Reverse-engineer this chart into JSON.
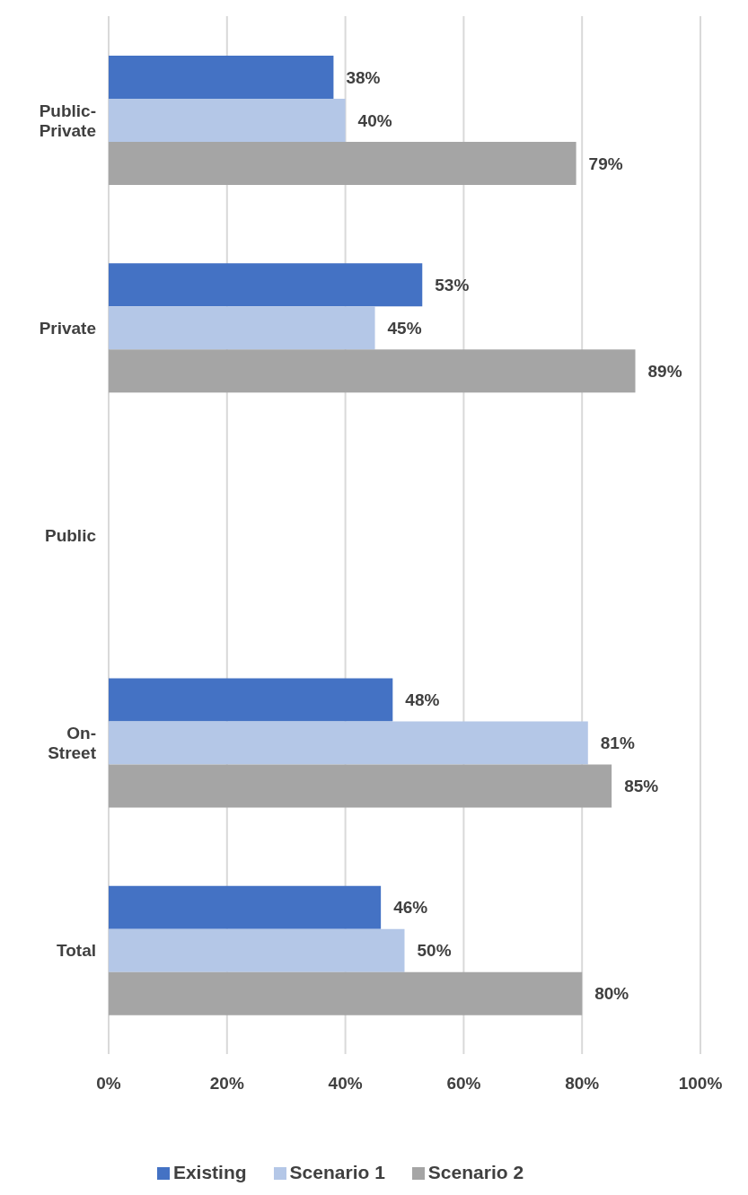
{
  "chart_data": {
    "type": "bar",
    "orientation": "horizontal",
    "categories": [
      "Public-Private",
      "Private",
      "Public",
      "On-Street",
      "Total"
    ],
    "series": [
      {
        "name": "Existing",
        "color": "#4472c4",
        "values": [
          38,
          53,
          null,
          48,
          46
        ],
        "value_labels": [
          "38%",
          "53%",
          null,
          "48%",
          "46%"
        ]
      },
      {
        "name": "Scenario 1",
        "color": "#b4c7e7",
        "values": [
          40,
          45,
          null,
          81,
          50
        ],
        "value_labels": [
          "40%",
          "45%",
          null,
          "81%",
          "50%"
        ]
      },
      {
        "name": "Scenario 2",
        "color": "#a5a5a5",
        "values": [
          79,
          89,
          null,
          85,
          80
        ],
        "value_labels": [
          "79%",
          "89%",
          null,
          "85%",
          "80%"
        ]
      }
    ],
    "xlim": [
      0,
      100
    ],
    "xticks": [
      {
        "value": 0,
        "label": "0%"
      },
      {
        "value": 20,
        "label": "20%"
      },
      {
        "value": 40,
        "label": "40%"
      },
      {
        "value": 60,
        "label": "60%"
      },
      {
        "value": 80,
        "label": "80%"
      },
      {
        "value": 100,
        "label": "100%"
      }
    ],
    "grid": "x",
    "legend": "bottom"
  }
}
